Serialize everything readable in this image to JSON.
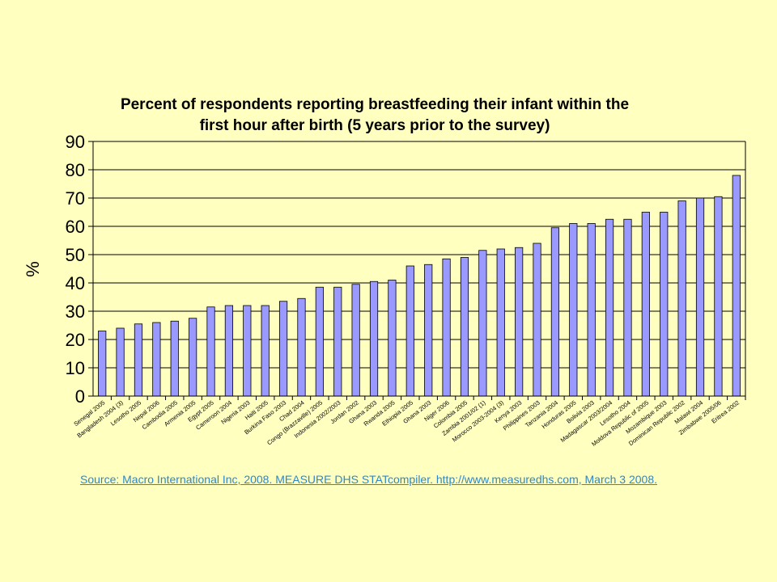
{
  "chart_data": {
    "type": "bar",
    "title": "Percent of respondents reporting breastfeeding their infant within the first hour after birth (5 years prior to the survey)",
    "title_lines": [
      "Percent of respondents reporting breastfeeding their infant within the",
      "first hour after birth (5 years prior to the survey)"
    ],
    "xlabel": "",
    "ylabel": "%",
    "ylim": [
      0,
      90
    ],
    "yticks": [
      0,
      10,
      20,
      30,
      40,
      50,
      60,
      70,
      80,
      90
    ],
    "grid": true,
    "legend": "none",
    "categories": [
      "Senegal 2005",
      "Bangladesh 2004 (3)",
      "Lesotho 2005",
      "Nepal 2006",
      "Cambodia 2005",
      "Armenia 2005",
      "Egypt 2005",
      "Cameroon 2004",
      "Nigeria 2003",
      "Haiti 2005",
      "Burkina Faso 2003",
      "Chad 2004",
      "Congo (Brazzaville) 2005",
      "Indonesia 2002/2003",
      "Jordan 2002",
      "Ghana 2003",
      "Rwanda 2005",
      "Ethiopia 2005",
      "Ghana 2003",
      "Niger 2006",
      "Colombia 2005",
      "Zambia 2001/02 (1)",
      "Morocco 2003-2004 (3)",
      "Kenya 2003",
      "Philippines 2003",
      "Tanzania 2004",
      "Honduras 2005",
      "Bolivia 2003",
      "Madagascar 2003/2004",
      "Lesotho 2004",
      "Moldova Republic of 2005",
      "Mozambique 2003",
      "Dominican Republic 2002",
      "Malawi 2004",
      "Zimbabwe 2005/06",
      "Eritrea 2002"
    ],
    "values": [
      23,
      24,
      25.5,
      26,
      26.5,
      27.5,
      31.5,
      32,
      32,
      32,
      33.5,
      34.5,
      38.5,
      38.5,
      39.5,
      40.5,
      41,
      46,
      46.5,
      48.5,
      49,
      51.5,
      52,
      52.5,
      54,
      59.5,
      61,
      61,
      62.5,
      62.5,
      65,
      65,
      69,
      70,
      70.5,
      78
    ],
    "colors": {
      "background": "#FFFFC0",
      "bar_fill": "#9999FF",
      "bar_stroke": "#000000",
      "plot_area": "#FFFFC0"
    }
  },
  "source": {
    "text": "Source: Macro International Inc, 2008. MEASURE DHS STATcompiler. http://www.measuredhs.com, March 3 2008."
  }
}
